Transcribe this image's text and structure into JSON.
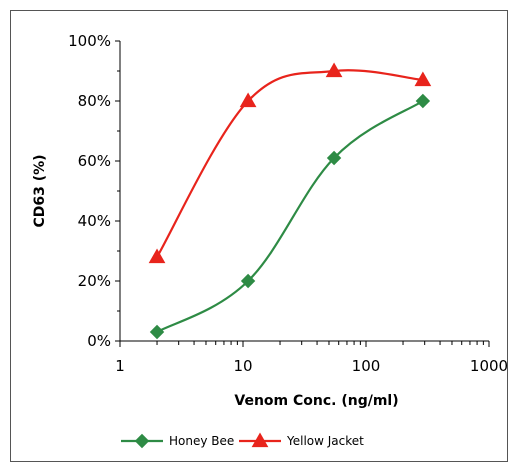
{
  "chart_data": {
    "type": "line",
    "xlabel": "Venom Conc. (ng/ml)",
    "ylabel": "CD63 (%)",
    "x_scale": "log",
    "xlim": [
      1,
      1000
    ],
    "ylim": [
      0,
      100
    ],
    "x_ticks": [
      1,
      10,
      100,
      1000
    ],
    "x_tick_labels": [
      "1",
      "10",
      "100",
      "1000"
    ],
    "y_ticks": [
      0,
      20,
      40,
      60,
      80,
      100
    ],
    "y_tick_labels": [
      "0%",
      "20%",
      "40%",
      "60%",
      "80%",
      "100%"
    ],
    "grid": false,
    "legend_position": "bottom",
    "series": [
      {
        "name": "Honey Bee",
        "color": "#2e8b45",
        "marker": "diamond",
        "x": [
          2,
          11,
          55,
          290
        ],
        "y": [
          3,
          20,
          61,
          80
        ]
      },
      {
        "name": "Yellow Jacket",
        "color": "#e8241c",
        "marker": "triangle",
        "x": [
          2,
          11,
          55,
          290
        ],
        "y": [
          28,
          80,
          90,
          87
        ]
      }
    ]
  }
}
